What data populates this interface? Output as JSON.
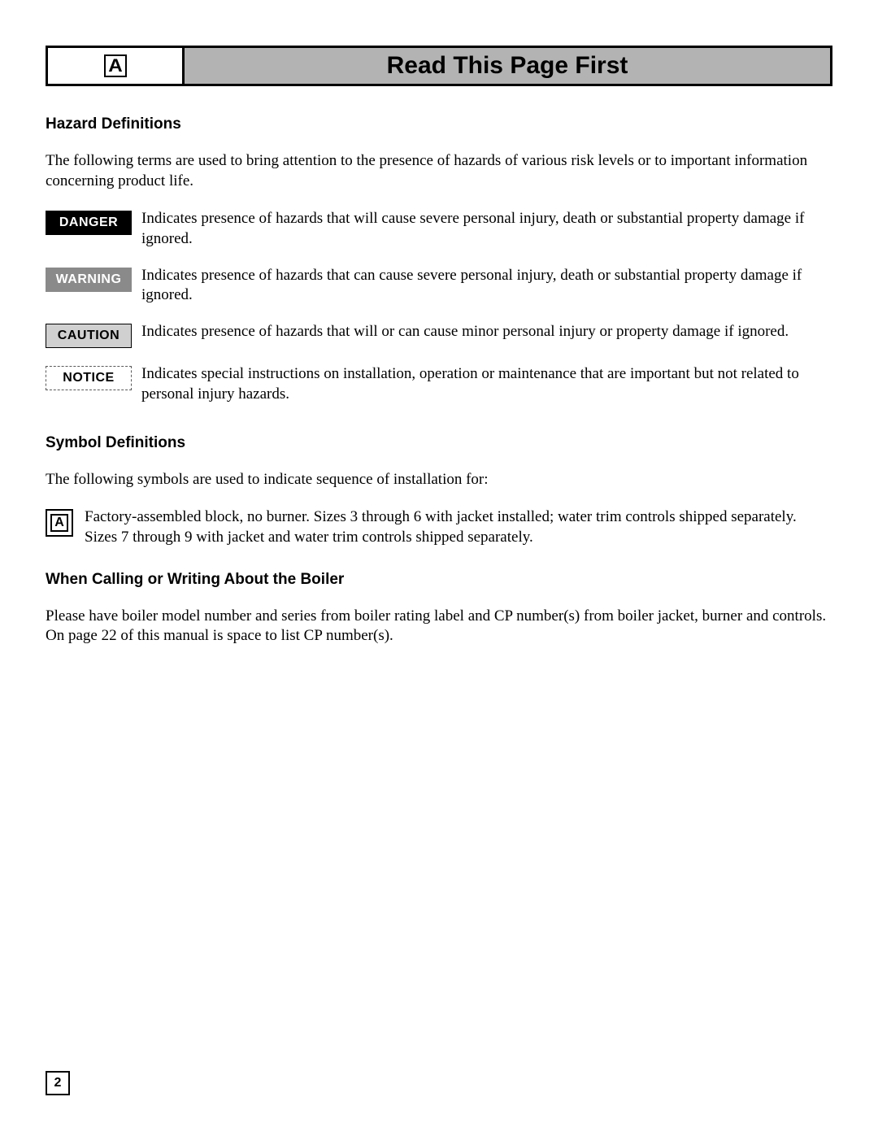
{
  "header": {
    "title": "Read This Page First"
  },
  "sections": {
    "hazard": {
      "title": "Hazard Definitions",
      "intro": "The following terms are used to bring attention to the presence of hazards of various risk levels or to important information concerning product life.",
      "items": [
        {
          "label": "DANGER",
          "style": "danger",
          "text": "Indicates presence of hazards that will cause severe personal injury, death or substantial property damage if ignored."
        },
        {
          "label": "WARNING",
          "style": "warning",
          "text": "Indicates presence of hazards that can cause severe personal injury, death or substantial property damage if ignored."
        },
        {
          "label": "CAUTION",
          "style": "caution",
          "text": "Indicates presence of hazards that will or can cause minor personal injury or property damage if ignored."
        },
        {
          "label": "NOTICE",
          "style": "notice",
          "text": "Indicates special instructions on installation, operation or maintenance that are important but not related to personal injury hazards."
        }
      ]
    },
    "symbol": {
      "title": "Symbol Definitions",
      "intro": "The following symbols are used to indicate sequence of installation for:",
      "items": [
        {
          "text": "Factory-assembled block, no burner. Sizes 3 through 6 with jacket installed; water trim controls shipped separately. Sizes 7 through 9 with jacket and water trim controls shipped separately."
        }
      ]
    },
    "contact": {
      "title": "When Calling or Writing About the Boiler",
      "text": "Please have boiler model number and series from boiler rating label and CP number(s) from boiler jacket, burner and controls. On page 22 of this manual is space to list CP number(s)."
    }
  },
  "page_number": "2",
  "logo_glyph": "A"
}
